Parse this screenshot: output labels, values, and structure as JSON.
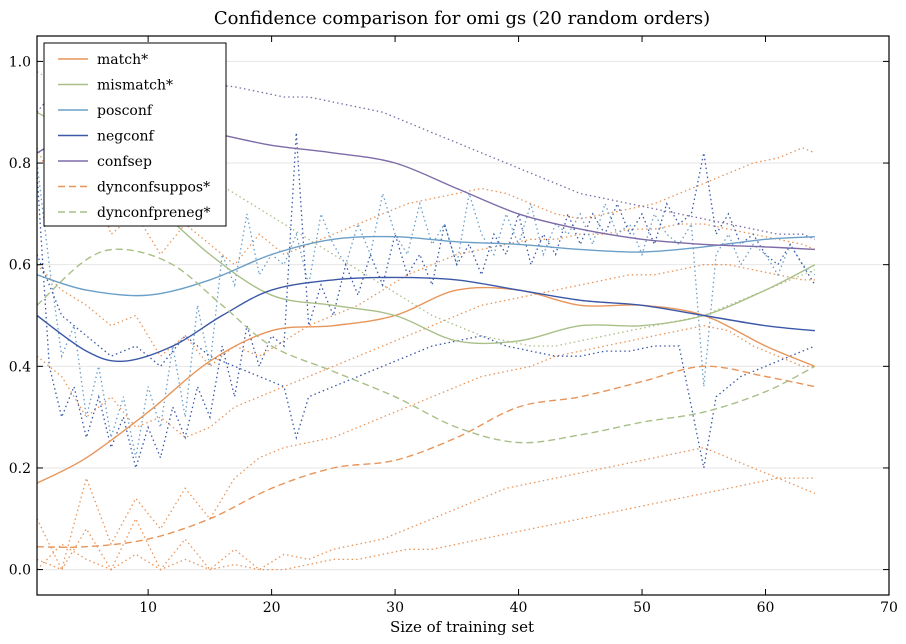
{
  "chart_data": {
    "type": "line",
    "title": "Confidence comparison for omi gs (20 random orders)",
    "xlabel": "Size of training set",
    "ylabel": "",
    "xlim": [
      1,
      70
    ],
    "ylim": [
      -0.05,
      1.05
    ],
    "x_ticks": [
      10,
      20,
      30,
      40,
      50,
      60,
      70
    ],
    "y_ticks": [
      0.0,
      0.2,
      0.4,
      0.6,
      0.8,
      1.0
    ],
    "x_tick_labels": [
      "10",
      "20",
      "30",
      "40",
      "50",
      "60",
      "70"
    ],
    "y_tick_labels": [
      "0.0",
      "0.2",
      "0.4",
      "0.6",
      "0.8",
      "1.0"
    ],
    "grid": "horizontal",
    "legend_position": "top-left",
    "series": [
      {
        "name": "match*",
        "color": "#e8955a",
        "dash": "solid",
        "x": [
          1,
          5,
          10,
          15,
          20,
          25,
          30,
          35,
          40,
          45,
          50,
          55,
          60,
          64
        ],
        "y": [
          0.17,
          0.22,
          0.31,
          0.41,
          0.47,
          0.48,
          0.5,
          0.55,
          0.55,
          0.52,
          0.52,
          0.5,
          0.44,
          0.4
        ]
      },
      {
        "name": "mismatch*",
        "color": "#a9bf88",
        "dash": "solid",
        "x": [
          1,
          5,
          10,
          15,
          20,
          25,
          30,
          35,
          40,
          45,
          50,
          55,
          60,
          64
        ],
        "y": [
          0.9,
          0.84,
          0.73,
          0.62,
          0.54,
          0.52,
          0.5,
          0.45,
          0.45,
          0.48,
          0.48,
          0.5,
          0.55,
          0.6
        ]
      },
      {
        "name": "posconf",
        "color": "#6a9fc8",
        "dash": "solid",
        "x": [
          1,
          5,
          10,
          15,
          20,
          25,
          30,
          35,
          40,
          45,
          50,
          55,
          60,
          64
        ],
        "y": [
          0.58,
          0.55,
          0.54,
          0.57,
          0.62,
          0.65,
          0.655,
          0.645,
          0.64,
          0.63,
          0.625,
          0.635,
          0.65,
          0.655
        ]
      },
      {
        "name": "negconf",
        "color": "#3b58a8",
        "dash": "solid",
        "x": [
          1,
          5,
          8,
          12,
          16,
          20,
          25,
          30,
          35,
          40,
          45,
          50,
          55,
          60,
          64
        ],
        "y": [
          0.5,
          0.43,
          0.41,
          0.44,
          0.5,
          0.55,
          0.57,
          0.575,
          0.57,
          0.55,
          0.53,
          0.52,
          0.5,
          0.48,
          0.47
        ]
      },
      {
        "name": "confsep",
        "color": "#7d6ba8",
        "dash": "solid",
        "x": [
          1,
          5,
          10,
          15,
          20,
          25,
          30,
          35,
          40,
          45,
          50,
          55,
          60,
          64
        ],
        "y": [
          0.82,
          0.87,
          0.88,
          0.86,
          0.835,
          0.82,
          0.8,
          0.75,
          0.7,
          0.67,
          0.65,
          0.64,
          0.635,
          0.63
        ]
      },
      {
        "name": "dynconfsuppos*",
        "color": "#e8955a",
        "dash": "dashed",
        "x": [
          1,
          5,
          10,
          15,
          20,
          25,
          30,
          35,
          40,
          45,
          50,
          55,
          60,
          64
        ],
        "y": [
          0.045,
          0.045,
          0.06,
          0.1,
          0.16,
          0.2,
          0.215,
          0.26,
          0.32,
          0.34,
          0.37,
          0.4,
          0.38,
          0.36
        ]
      },
      {
        "name": "dynconfpreneg*",
        "color": "#a9bf88",
        "dash": "dashed",
        "x": [
          1,
          5,
          8,
          12,
          16,
          20,
          25,
          30,
          35,
          40,
          45,
          50,
          55,
          60,
          64
        ],
        "y": [
          0.52,
          0.61,
          0.63,
          0.6,
          0.52,
          0.44,
          0.39,
          0.34,
          0.28,
          0.25,
          0.265,
          0.29,
          0.31,
          0.35,
          0.4
        ]
      }
    ],
    "dotted_traces": [
      {
        "color": "#e8955a",
        "x": [
          1,
          3,
          5,
          7,
          9,
          11,
          13,
          15,
          17,
          19,
          21,
          23,
          25,
          27,
          29,
          31,
          33,
          35,
          37,
          39,
          41,
          43,
          45,
          47,
          49,
          51,
          53,
          55,
          57,
          59,
          61,
          63,
          64
        ],
        "y": [
          0.83,
          0.72,
          0.8,
          0.66,
          0.7,
          0.62,
          0.68,
          0.64,
          0.6,
          0.66,
          0.62,
          0.64,
          0.66,
          0.68,
          0.7,
          0.72,
          0.73,
          0.74,
          0.75,
          0.74,
          0.72,
          0.7,
          0.69,
          0.7,
          0.71,
          0.72,
          0.74,
          0.76,
          0.78,
          0.8,
          0.81,
          0.83,
          0.82
        ]
      },
      {
        "color": "#e8955a",
        "x": [
          1,
          3,
          5,
          7,
          9,
          11,
          13,
          15,
          17,
          19,
          21,
          23,
          25,
          27,
          29,
          31,
          33,
          35,
          37,
          39,
          41,
          43,
          45,
          47,
          49,
          51,
          53,
          55,
          57,
          59,
          61,
          63,
          64
        ],
        "y": [
          0.6,
          0.55,
          0.52,
          0.48,
          0.5,
          0.42,
          0.46,
          0.4,
          0.44,
          0.42,
          0.45,
          0.48,
          0.5,
          0.52,
          0.55,
          0.58,
          0.6,
          0.62,
          0.63,
          0.64,
          0.65,
          0.65,
          0.66,
          0.66,
          0.67,
          0.67,
          0.68,
          0.68,
          0.67,
          0.66,
          0.65,
          0.64,
          0.63
        ]
      },
      {
        "color": "#e8955a",
        "x": [
          1,
          3,
          5,
          7,
          9,
          11,
          13,
          15,
          17,
          19,
          21,
          23,
          25,
          27,
          29,
          31,
          33,
          35,
          37,
          39,
          41,
          43,
          45,
          47,
          49,
          51,
          53,
          55,
          57,
          59,
          61,
          63,
          64
        ],
        "y": [
          0.42,
          0.38,
          0.3,
          0.34,
          0.28,
          0.3,
          0.26,
          0.28,
          0.32,
          0.34,
          0.36,
          0.38,
          0.4,
          0.42,
          0.44,
          0.46,
          0.48,
          0.5,
          0.52,
          0.53,
          0.54,
          0.55,
          0.56,
          0.57,
          0.58,
          0.58,
          0.59,
          0.6,
          0.6,
          0.59,
          0.58,
          0.57,
          0.57
        ]
      },
      {
        "color": "#e8955a",
        "x": [
          1,
          3,
          5,
          7,
          9,
          11,
          13,
          15,
          17,
          19,
          21,
          23,
          25,
          27,
          29,
          31,
          33,
          35,
          37,
          39,
          41,
          43,
          45,
          47,
          49,
          51,
          53,
          55,
          57,
          59,
          61,
          63,
          64
        ],
        "y": [
          0.1,
          0.0,
          0.18,
          0.05,
          0.14,
          0.08,
          0.16,
          0.1,
          0.18,
          0.22,
          0.24,
          0.25,
          0.26,
          0.28,
          0.3,
          0.32,
          0.34,
          0.36,
          0.38,
          0.39,
          0.4,
          0.42,
          0.43,
          0.44,
          0.45,
          0.46,
          0.47,
          0.48,
          0.47,
          0.44,
          0.42,
          0.4,
          0.4
        ]
      },
      {
        "color": "#e8955a",
        "x": [
          1,
          3,
          5,
          7,
          9,
          11,
          13,
          15,
          17,
          19,
          21,
          23,
          25,
          27,
          29,
          31,
          33,
          35,
          37,
          39,
          41,
          43,
          45,
          47,
          49,
          51,
          53,
          55,
          57,
          59,
          61,
          63,
          64
        ],
        "y": [
          0.02,
          0.0,
          0.08,
          0.0,
          0.1,
          0.0,
          0.06,
          0.0,
          0.04,
          0.0,
          0.03,
          0.02,
          0.04,
          0.05,
          0.06,
          0.08,
          0.1,
          0.12,
          0.14,
          0.16,
          0.17,
          0.18,
          0.19,
          0.2,
          0.21,
          0.22,
          0.23,
          0.24,
          0.22,
          0.2,
          0.18,
          0.16,
          0.15
        ]
      },
      {
        "color": "#e8955a",
        "x": [
          1,
          3,
          5,
          7,
          9,
          11,
          13,
          15,
          17,
          19,
          21,
          23,
          25,
          27,
          29,
          31,
          33,
          35,
          37,
          39,
          41,
          43,
          45,
          47,
          49,
          51,
          53,
          55,
          57,
          59,
          61,
          63,
          64
        ],
        "y": [
          0.0,
          0.05,
          0.02,
          0.0,
          0.03,
          0.0,
          0.02,
          0.0,
          0.01,
          0.0,
          0.0,
          0.01,
          0.02,
          0.02,
          0.03,
          0.04,
          0.04,
          0.05,
          0.06,
          0.07,
          0.08,
          0.09,
          0.1,
          0.11,
          0.12,
          0.13,
          0.14,
          0.15,
          0.16,
          0.17,
          0.18,
          0.18,
          0.18
        ]
      },
      {
        "color": "#a9bf88",
        "x": [
          1,
          3,
          5,
          7,
          9,
          11,
          13,
          15,
          17,
          19,
          21,
          23,
          25,
          27,
          29,
          31,
          33,
          35,
          37,
          39,
          41,
          43,
          45,
          47,
          49,
          51,
          53,
          55,
          57,
          59,
          61,
          63,
          64
        ],
        "y": [
          0.98,
          0.95,
          0.93,
          0.9,
          0.86,
          0.83,
          0.8,
          0.77,
          0.74,
          0.71,
          0.68,
          0.65,
          0.62,
          0.59,
          0.56,
          0.53,
          0.5,
          0.48,
          0.46,
          0.45,
          0.44,
          0.44,
          0.45,
          0.46,
          0.47,
          0.48,
          0.49,
          0.5,
          0.52,
          0.54,
          0.56,
          0.58,
          0.59
        ]
      },
      {
        "color": "#6a9fc8",
        "x": [
          1,
          2,
          3,
          4,
          5,
          6,
          7,
          8,
          9,
          10,
          11,
          12,
          13,
          14,
          15,
          16,
          17,
          18,
          19,
          20,
          21,
          22,
          23,
          24,
          25,
          26,
          27,
          28,
          29,
          30,
          31,
          32,
          33,
          34,
          35,
          36,
          37,
          38,
          39,
          40,
          41,
          42,
          43,
          44,
          45,
          46,
          47,
          48,
          49,
          50,
          51,
          52,
          53,
          54,
          55,
          56,
          57,
          58,
          59,
          60,
          61,
          62,
          63,
          64
        ],
        "y": [
          0.8,
          0.6,
          0.42,
          0.48,
          0.3,
          0.4,
          0.26,
          0.34,
          0.22,
          0.36,
          0.28,
          0.44,
          0.3,
          0.52,
          0.4,
          0.62,
          0.56,
          0.7,
          0.58,
          0.62,
          0.6,
          0.66,
          0.56,
          0.7,
          0.64,
          0.6,
          0.68,
          0.62,
          0.74,
          0.66,
          0.62,
          0.72,
          0.64,
          0.68,
          0.6,
          0.74,
          0.66,
          0.62,
          0.7,
          0.64,
          0.72,
          0.62,
          0.68,
          0.66,
          0.7,
          0.64,
          0.72,
          0.66,
          0.68,
          0.62,
          0.7,
          0.66,
          0.64,
          0.68,
          0.36,
          0.62,
          0.66,
          0.6,
          0.64,
          0.62,
          0.58,
          0.64,
          0.6,
          0.58
        ]
      },
      {
        "color": "#3b58a8",
        "x": [
          1,
          2,
          3,
          4,
          5,
          6,
          7,
          8,
          9,
          10,
          11,
          12,
          13,
          14,
          15,
          16,
          17,
          18,
          19,
          20,
          21,
          22,
          23,
          24,
          25,
          26,
          27,
          28,
          29,
          30,
          31,
          32,
          33,
          34,
          35,
          36,
          37,
          38,
          39,
          40,
          41,
          42,
          43,
          44,
          45,
          46,
          47,
          48,
          49,
          50,
          51,
          52,
          53,
          54,
          55,
          56,
          57,
          58,
          59,
          60,
          61,
          62,
          63,
          64
        ],
        "y": [
          0.78,
          0.4,
          0.3,
          0.36,
          0.26,
          0.34,
          0.24,
          0.3,
          0.2,
          0.28,
          0.22,
          0.32,
          0.26,
          0.36,
          0.3,
          0.44,
          0.34,
          0.48,
          0.4,
          0.46,
          0.44,
          0.86,
          0.48,
          0.56,
          0.5,
          0.6,
          0.54,
          0.62,
          0.56,
          0.66,
          0.58,
          0.62,
          0.56,
          0.68,
          0.6,
          0.64,
          0.58,
          0.66,
          0.62,
          0.7,
          0.6,
          0.66,
          0.62,
          0.7,
          0.64,
          0.7,
          0.66,
          0.72,
          0.66,
          0.7,
          0.64,
          0.72,
          0.68,
          0.7,
          0.82,
          0.66,
          0.7,
          0.64,
          0.66,
          0.62,
          0.6,
          0.64,
          0.6,
          0.56
        ]
      },
      {
        "color": "#3b58a8",
        "x": [
          1,
          3,
          5,
          7,
          9,
          11,
          13,
          15,
          17,
          19,
          21,
          22,
          23,
          25,
          27,
          29,
          31,
          33,
          35,
          37,
          39,
          41,
          43,
          45,
          47,
          49,
          51,
          53,
          55,
          56,
          58,
          60,
          62,
          64
        ],
        "y": [
          0.62,
          0.5,
          0.46,
          0.42,
          0.44,
          0.4,
          0.46,
          0.42,
          0.4,
          0.38,
          0.36,
          0.26,
          0.34,
          0.36,
          0.38,
          0.4,
          0.42,
          0.44,
          0.45,
          0.46,
          0.44,
          0.43,
          0.42,
          0.42,
          0.43,
          0.43,
          0.44,
          0.44,
          0.2,
          0.34,
          0.38,
          0.4,
          0.42,
          0.44
        ]
      },
      {
        "color": "#7d6ba8",
        "x": [
          1,
          3,
          5,
          7,
          9,
          11,
          13,
          15,
          17,
          19,
          21,
          23,
          25,
          27,
          29,
          31,
          33,
          35,
          37,
          39,
          41,
          43,
          45,
          47,
          49,
          51,
          53,
          55,
          57,
          59,
          61,
          63,
          64
        ],
        "y": [
          0.9,
          0.96,
          0.98,
          0.98,
          0.97,
          0.97,
          0.96,
          0.955,
          0.95,
          0.94,
          0.93,
          0.93,
          0.92,
          0.91,
          0.9,
          0.88,
          0.86,
          0.84,
          0.82,
          0.8,
          0.78,
          0.76,
          0.74,
          0.73,
          0.72,
          0.71,
          0.7,
          0.69,
          0.68,
          0.67,
          0.66,
          0.66,
          0.65
        ]
      }
    ]
  }
}
